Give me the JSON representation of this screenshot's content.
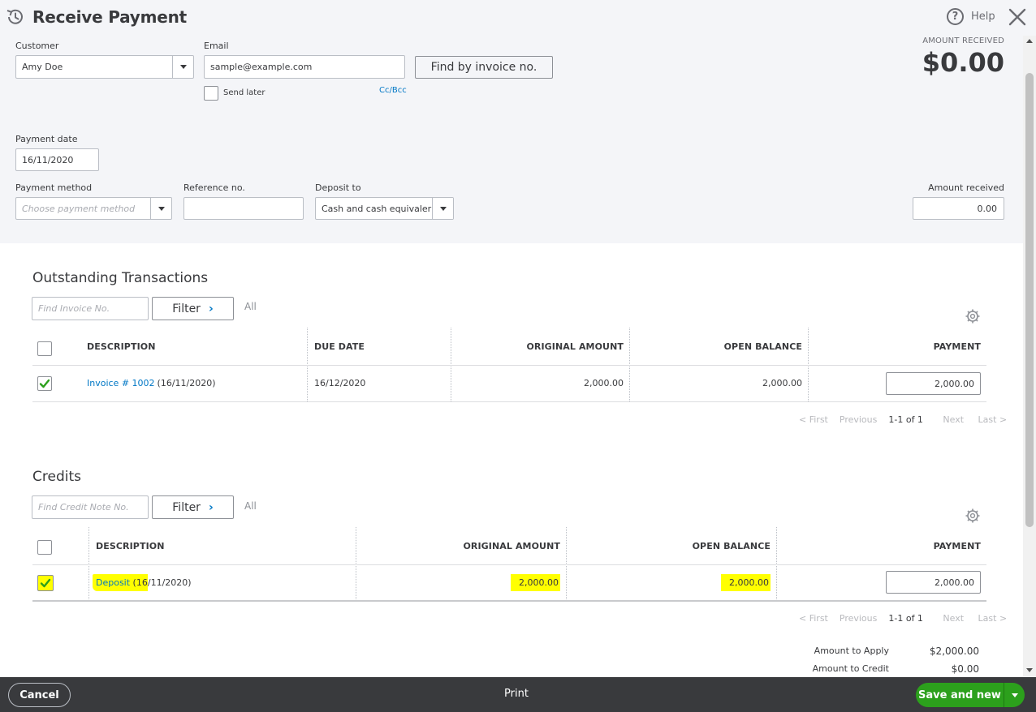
{
  "header": {
    "title": "Receive Payment",
    "help_label": "Help",
    "amount_received_label": "AMOUNT RECEIVED",
    "amount_received_value": "$0.00"
  },
  "form": {
    "customer_label": "Customer",
    "customer_value": "Amy Doe",
    "email_label": "Email",
    "email_value": "sample@example.com",
    "send_later_label": "Send later",
    "cc_bcc_label": "Cc/Bcc",
    "find_invoice_label": "Find by invoice no.",
    "payment_date_label": "Payment date",
    "payment_date_value": "16/11/2020",
    "payment_method_label": "Payment method",
    "payment_method_placeholder": "Choose payment method",
    "reference_label": "Reference no.",
    "reference_value": "",
    "deposit_to_label": "Deposit to",
    "deposit_to_value": "Cash and cash equivaler",
    "amount_received_label": "Amount received",
    "amount_received_value": "0.00"
  },
  "outstanding": {
    "title": "Outstanding Transactions",
    "search_placeholder": "Find Invoice No.",
    "filter_label": "Filter",
    "all_label": "All",
    "columns": {
      "description": "DESCRIPTION",
      "due_date": "DUE DATE",
      "original_amount": "ORIGINAL AMOUNT",
      "open_balance": "OPEN BALANCE",
      "payment": "PAYMENT"
    },
    "rows": [
      {
        "checked": true,
        "link": "Invoice # 1002",
        "date": "(16/11/2020)",
        "due_date": "16/12/2020",
        "original_amount": "2,000.00",
        "open_balance": "2,000.00",
        "payment": "2,000.00"
      }
    ],
    "pager": {
      "first": "< First",
      "previous": "Previous",
      "range": "1-1 of 1",
      "next": "Next",
      "last": "Last >"
    }
  },
  "credits": {
    "title": "Credits",
    "search_placeholder": "Find Credit Note No.",
    "filter_label": "Filter",
    "all_label": "All",
    "columns": {
      "description": "DESCRIPTION",
      "original_amount": "ORIGINAL AMOUNT",
      "open_balance": "OPEN BALANCE",
      "payment": "PAYMENT"
    },
    "rows": [
      {
        "checked": true,
        "link": "Deposit",
        "date_hl": " (16",
        "date_rest": "/11/2020)",
        "original_amount": "2,000.00",
        "open_balance": "2,000.00",
        "payment": "2,000.00"
      }
    ],
    "pager": {
      "first": "< First",
      "previous": "Previous",
      "range": "1-1 of 1",
      "next": "Next",
      "last": "Last >"
    }
  },
  "summary": {
    "amount_to_apply_label": "Amount to Apply",
    "amount_to_apply_value": "$2,000.00",
    "amount_to_credit_label": "Amount to Credit",
    "amount_to_credit_value": "$0.00"
  },
  "footer": {
    "cancel_label": "Cancel",
    "print_label": "Print",
    "save_label": "Save and new"
  },
  "colors": {
    "header_bg": "#f4f5f8",
    "link": "#0077c5",
    "checkmark": "#2ca01c",
    "highlight": "#ffff00",
    "footer_bg": "#393a3d",
    "save_button": "#2ca01c"
  },
  "icons": {
    "history": "history-icon",
    "help": "help-icon",
    "close": "close-icon",
    "gear": "gear-icon",
    "chevron": "chevron-right-icon",
    "caret": "caret-down-icon",
    "check": "checkmark-icon"
  }
}
